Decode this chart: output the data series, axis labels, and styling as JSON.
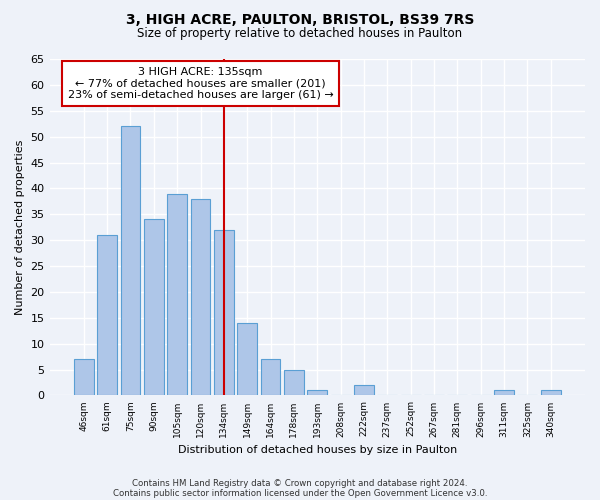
{
  "title1": "3, HIGH ACRE, PAULTON, BRISTOL, BS39 7RS",
  "title2": "Size of property relative to detached houses in Paulton",
  "xlabel": "Distribution of detached houses by size in Paulton",
  "ylabel": "Number of detached properties",
  "categories": [
    "46sqm",
    "61sqm",
    "75sqm",
    "90sqm",
    "105sqm",
    "120sqm",
    "134sqm",
    "149sqm",
    "164sqm",
    "178sqm",
    "193sqm",
    "208sqm",
    "222sqm",
    "237sqm",
    "252sqm",
    "267sqm",
    "281sqm",
    "296sqm",
    "311sqm",
    "325sqm",
    "340sqm"
  ],
  "values": [
    7,
    31,
    52,
    34,
    39,
    38,
    32,
    14,
    7,
    5,
    1,
    0,
    2,
    0,
    0,
    0,
    0,
    0,
    1,
    0,
    1
  ],
  "bar_color": "#aec6e8",
  "bar_edgecolor": "#5a9fd4",
  "ylim": [
    0,
    65
  ],
  "yticks": [
    0,
    5,
    10,
    15,
    20,
    25,
    30,
    35,
    40,
    45,
    50,
    55,
    60,
    65
  ],
  "property_bar_index": 6,
  "property_label": "3 HIGH ACRE: 135sqm",
  "annotation_line1": "← 77% of detached houses are smaller (201)",
  "annotation_line2": "23% of semi-detached houses are larger (61) →",
  "vline_color": "#cc0000",
  "annotation_box_color": "#cc0000",
  "background_color": "#eef2f9",
  "grid_color": "#ffffff",
  "footnote1": "Contains HM Land Registry data © Crown copyright and database right 2024.",
  "footnote2": "Contains public sector information licensed under the Open Government Licence v3.0."
}
